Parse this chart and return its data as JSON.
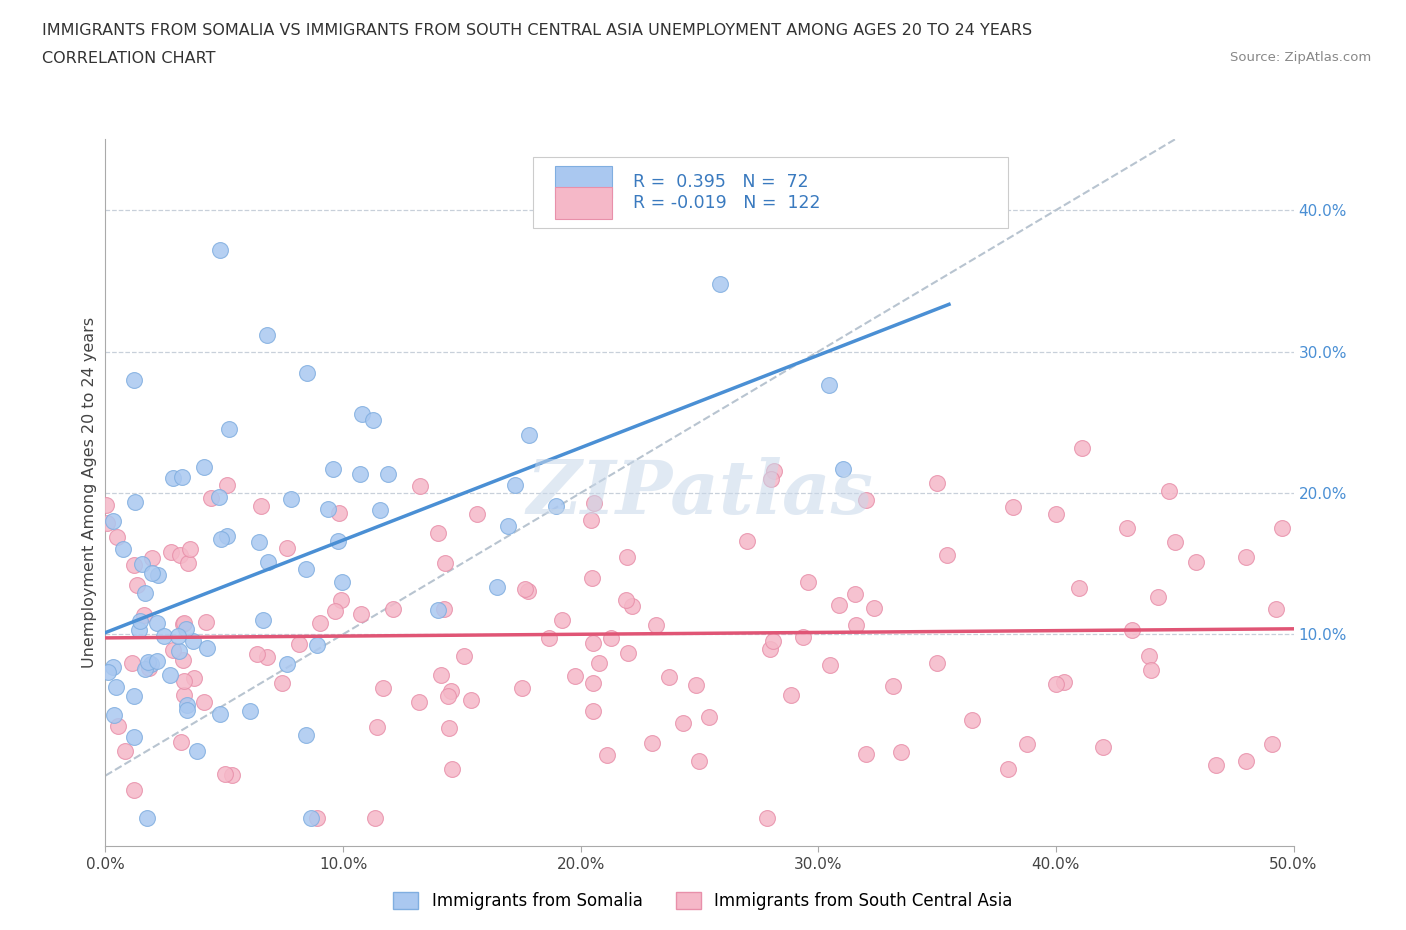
{
  "title_line1": "IMMIGRANTS FROM SOMALIA VS IMMIGRANTS FROM SOUTH CENTRAL ASIA UNEMPLOYMENT AMONG AGES 20 TO 24 YEARS",
  "title_line2": "CORRELATION CHART",
  "source_text": "Source: ZipAtlas.com",
  "ylabel": "Unemployment Among Ages 20 to 24 years",
  "xlim": [
    0.0,
    0.5
  ],
  "ylim": [
    -0.05,
    0.45
  ],
  "xticks": [
    0.0,
    0.1,
    0.2,
    0.3,
    0.4,
    0.5
  ],
  "xtick_labels": [
    "0.0%",
    "10.0%",
    "20.0%",
    "30.0%",
    "40.0%",
    "50.0%"
  ],
  "yticks": [
    0.1,
    0.2,
    0.3,
    0.4
  ],
  "ytick_labels": [
    "10.0%",
    "20.0%",
    "30.0%",
    "40.0%"
  ],
  "somalia_color": "#aac8f0",
  "somalia_edge_color": "#80aee0",
  "sca_color": "#f5b8c8",
  "sca_edge_color": "#e890aa",
  "trend_somalia_color": "#4a8fd4",
  "trend_sca_color": "#e05575",
  "diagonal_color": "#b8c4d0",
  "watermark_color": "#c8d8ea",
  "R_somalia": 0.395,
  "N_somalia": 72,
  "R_sca": -0.019,
  "N_sca": 122,
  "legend_label_somalia": "Immigrants from Somalia",
  "legend_label_sca": "Immigrants from South Central Asia"
}
